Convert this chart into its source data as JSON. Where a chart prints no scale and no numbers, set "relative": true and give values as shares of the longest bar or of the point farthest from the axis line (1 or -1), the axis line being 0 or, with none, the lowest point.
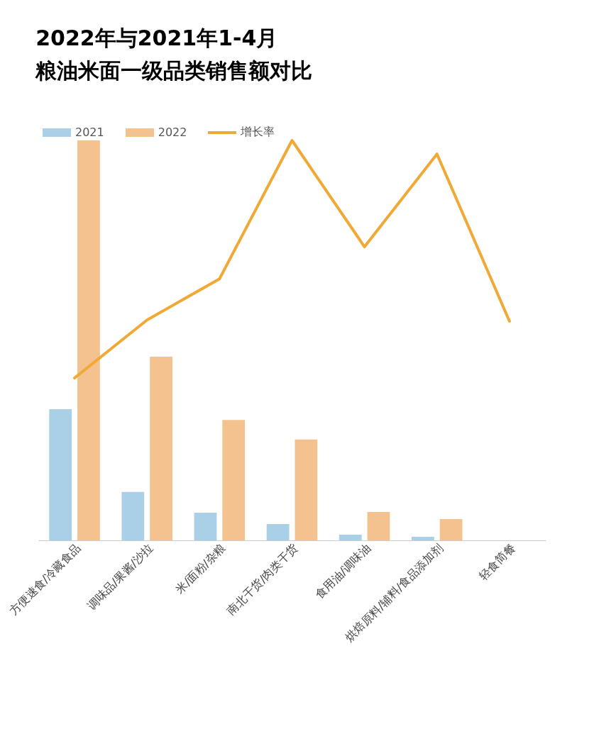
{
  "chart_data": {
    "type": "bar",
    "title": "2022年与2021年1-4月",
    "subtitle": "粮油米面一级品类销售额对比",
    "relative": true,
    "legend": "top left",
    "grid": false,
    "categories": [
      "方便速食/冷藏食品",
      "调味品/果酱/沙拉",
      "米/面粉/杂粮",
      "南北干货/肉类干货",
      "食用油/调味油",
      "烘焙原料/辅料/食品添加剂",
      "轻食简餐"
    ],
    "series": [
      {
        "name": "2021",
        "color": "#a9d0e6",
        "values": [
          0.328,
          0.121,
          0.069,
          0.041,
          0.014,
          0.009,
          0
        ]
      },
      {
        "name": "2022",
        "color": "#f4c28e",
        "values": [
          1,
          0.459,
          0.301,
          0.252,
          0.071,
          0.053,
          0
        ]
      },
      {
        "name": "增长率",
        "type": "line",
        "color": "#f0a935",
        "values": [
          0.406,
          0.551,
          0.654,
          1,
          0.734,
          0.966,
          0.548
        ]
      }
    ]
  }
}
